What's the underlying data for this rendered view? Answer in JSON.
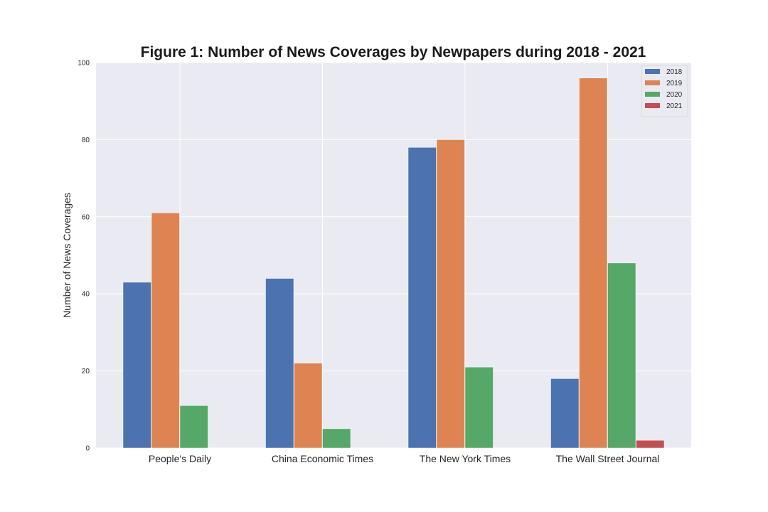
{
  "chart_data": {
    "type": "bar",
    "title": "Figure 1: Number of News Coverages by Newpapers during 2018 - 2021",
    "xlabel": "",
    "ylabel": "Number of News Coverages",
    "categories": [
      "People's Daily",
      "China Economic Times",
      "The New York Times",
      "The Wall Street Journal"
    ],
    "series": [
      {
        "name": "2018",
        "color": "#4c72b0",
        "values": [
          43,
          44,
          78,
          18
        ]
      },
      {
        "name": "2019",
        "color": "#dd8452",
        "values": [
          61,
          22,
          80,
          96
        ]
      },
      {
        "name": "2020",
        "color": "#55a868",
        "values": [
          11,
          5,
          21,
          48
        ]
      },
      {
        "name": "2021",
        "color": "#c44e52",
        "values": [
          0,
          0,
          0,
          2
        ]
      }
    ],
    "ylim": [
      0,
      100
    ],
    "yticks": [
      0,
      20,
      40,
      60,
      80,
      100
    ],
    "grid": true,
    "legend_position": "top-right",
    "plot_background": "#eaeaf2"
  }
}
